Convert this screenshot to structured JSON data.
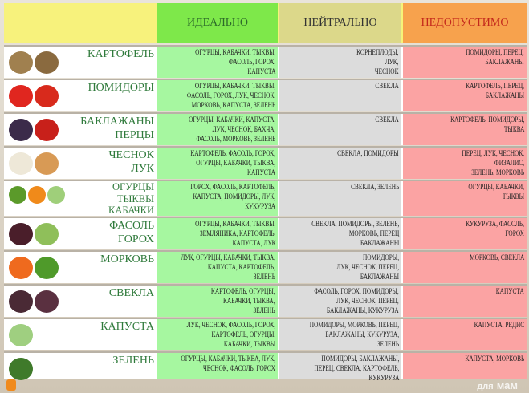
{
  "header": {
    "ideal": "ИДЕАЛЬНО",
    "neutral": "НЕЙТРАЛЬНО",
    "forbidden": "НЕДОПУСТИМО"
  },
  "rows": [
    {
      "name": "КАРТОФЕЛЬ",
      "ideal": "ОГУРЦЫ, КАБАЧКИ, ТЫКВЫ,\nФАСОЛЬ, ГОРОХ,\nКАПУСТА",
      "neutral": "КОРНЕПЛОДЫ,\nЛУК,\nЧЕСНОК",
      "forbidden": "ПОМИДОРЫ, ПЕРЕЦ,\nБАКЛАЖАНЫ"
    },
    {
      "name": "ПОМИДОРЫ",
      "ideal": "ОГУРЦЫ, КАБАЧКИ, ТЫКВЫ,\nФАСОЛЬ, ГОРОХ, ЛУК, ЧЕСНОК,\nМОРКОВЬ, КАПУСТА, ЗЕЛЕНЬ",
      "neutral": "СВЕКЛА",
      "forbidden": "КАРТОФЕЛЬ, ПЕРЕЦ,\nБАКЛАЖАНЫ"
    },
    {
      "name": "БАКЛАЖАНЫ\nПЕРЦЫ",
      "ideal": "ОГУРЦЫ, КАБАЧКИ, КАПУСТА,\nЛУК, ЧЕСНОК, БАХЧА,\nФАСОЛЬ, МОРКОВЬ, ЗЕЛЕНЬ",
      "neutral": "СВЕКЛА",
      "forbidden": "КАРТОФЕЛЬ, ПОМИДОРЫ,\nТЫКВА"
    },
    {
      "name": "ЧЕСНОК\nЛУК",
      "ideal": "КАРТОФЕЛЬ, ФАСОЛЬ, ГОРОХ,\nОГУРЦЫ, КАБАЧКИ, ТЫКВА,\nКАПУСТА",
      "neutral": "СВЕКЛА, ПОМИДОРЫ",
      "forbidden": "ПЕРЕЦ, ЛУК, ЧЕСНОК,\nФИЗАЛИС,\nЗЕЛЕНЬ, МОРКОВЬ"
    },
    {
      "name": "ОГУРЦЫ\nТЫКВЫ\nКАБАЧКИ",
      "ideal": "ГОРОХ, ФАСОЛЬ, КАРТОФЕЛЬ,\nКАПУСТА, ПОМИДОРЫ, ЛУК,\nКУКУРУЗА",
      "neutral": "СВЕКЛА, ЗЕЛЕНЬ",
      "forbidden": "ОГУРЦЫ, КАБАЧКИ,\nТЫКВЫ"
    },
    {
      "name": "ФАСОЛЬ\nГОРОХ",
      "ideal": "ОГУРЦЫ, КАБАЧКИ, ТЫКВЫ,\nЗЕМЛЯНИКА, КАРТОФЕЛЬ,\nКАПУСТА, ЛУК",
      "neutral": "СВЕКЛА, ПОМИДОРЫ, ЗЕЛЕНЬ,\nМОРКОВЬ, ПЕРЕЦ\nБАКЛАЖАНЫ",
      "forbidden": "КУКУРУЗА, ФАСОЛЬ,\nГОРОХ"
    },
    {
      "name": "МОРКОВЬ",
      "ideal": "ЛУК, ОГУРЦЫ, КАБАЧКИ, ТЫКВА,\nКАПУСТА, КАРТОФЕЛЬ,\nЗЕЛЕНЬ",
      "neutral": "ПОМИДОРЫ,\nЛУК, ЧЕСНОК, ПЕРЕЦ,\nБАКЛАЖАНЫ",
      "forbidden": "МОРКОВЬ, СВЕКЛА"
    },
    {
      "name": "СВЕКЛА",
      "ideal": "КАРТОФЕЛЬ, ОГУРЦЫ,\nКАБАЧКИ, ТЫКВА,\nЗЕЛЕНЬ",
      "neutral": "ФАСОЛЬ, ГОРОХ, ПОМИДОРЫ,\nЛУК, ЧЕСНОК, ПЕРЕЦ,\nБАКЛАЖАНЫ, КУКУРУЗА",
      "forbidden": "КАПУСТА"
    },
    {
      "name": "КАПУСТА",
      "ideal": "ЛУК, ЧЕСНОК, ФАСОЛЬ, ГОРОХ,\nКАРТОФЕЛЬ, ОГУРЦЫ,\nКАБАЧКИ, ТЫКВЫ",
      "neutral": "ПОМИДОРЫ, МОРКОВЬ, ПЕРЕЦ,\nБАКЛАЖАНЫ, КУКУРУЗА,\nЗЕЛЕНЬ",
      "forbidden": "КАПУСТА, РЕДИС"
    },
    {
      "name": "ЗЕЛЕНЬ",
      "ideal": "ОГУРЦЫ, КАБАЧКИ, ТЫКВА, ЛУК,\nЧЕСНОК, ФАСОЛЬ, ГОРОХ",
      "neutral": "ПОМИДОРЫ, БАКЛАЖАНЫ,\nПЕРЕЦ, СВЕКЛА, КАРТОФЕЛЬ,\nКУКУРУЗА",
      "forbidden": "КАПУСТА, МОРКОВЬ"
    }
  ],
  "watermark": {
    "line1": "для",
    "line2": "мам"
  },
  "colors": {
    "ideal": "#a6f7a0",
    "neutral": "#dcdcdc",
    "forbidden": "#fba3a3",
    "title": "#2f7a3b"
  }
}
